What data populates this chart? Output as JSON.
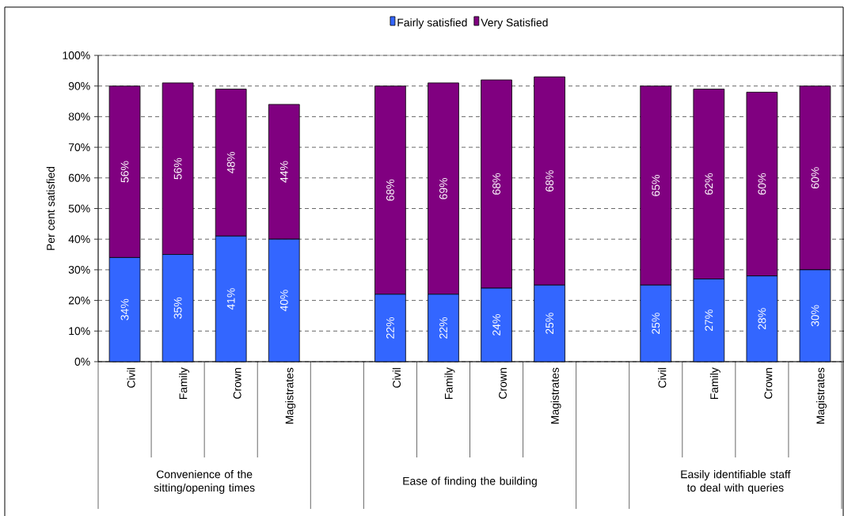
{
  "chart_data": {
    "type": "bar",
    "stacked": true,
    "ylabel": "Per cent satisfied",
    "categories": [
      "Civil",
      "Family",
      "Crown",
      "Magistrates",
      null,
      "Civil",
      "Family",
      "Crown",
      "Magistrates",
      null,
      "Civil",
      "Family",
      "Crown",
      "Magistrates"
    ],
    "series": [
      {
        "name": "Fairly satisfied",
        "color": "#3366ff",
        "values": [
          34,
          35,
          41,
          40,
          null,
          22,
          22,
          24,
          25,
          null,
          25,
          27,
          28,
          30
        ],
        "value_labels": [
          "34%",
          "35%",
          "41%",
          "40%",
          null,
          "22%",
          "22%",
          "24%",
          "25%",
          null,
          "25%",
          "27%",
          "28%",
          "30%"
        ]
      },
      {
        "name": "Very Satisfied",
        "color": "#800080",
        "values": [
          56,
          56,
          48,
          44,
          null,
          68,
          69,
          68,
          68,
          null,
          65,
          62,
          60,
          60
        ],
        "value_labels": [
          "56%",
          "56%",
          "48%",
          "44%",
          null,
          "68%",
          "69%",
          "68%",
          "68%",
          null,
          "65%",
          "62%",
          "60%",
          "60%"
        ]
      }
    ],
    "ylim": [
      0,
      100
    ],
    "yticks": [
      {
        "value": 0,
        "label": "0%"
      },
      {
        "value": 10,
        "label": "10%"
      },
      {
        "value": 20,
        "label": "20%"
      },
      {
        "value": 30,
        "label": "30%"
      },
      {
        "value": 40,
        "label": "40%"
      },
      {
        "value": 50,
        "label": "50%"
      },
      {
        "value": 60,
        "label": "60%"
      },
      {
        "value": 70,
        "label": "70%"
      },
      {
        "value": 80,
        "label": "80%"
      },
      {
        "value": 90,
        "label": "90%"
      },
      {
        "value": 100,
        "label": "100%"
      }
    ],
    "grid": "y",
    "legend": "top",
    "annotations": [
      "Convenience of the sitting/opening times",
      "Ease of finding the building",
      "Easily identifiable staff to deal with queries"
    ]
  }
}
